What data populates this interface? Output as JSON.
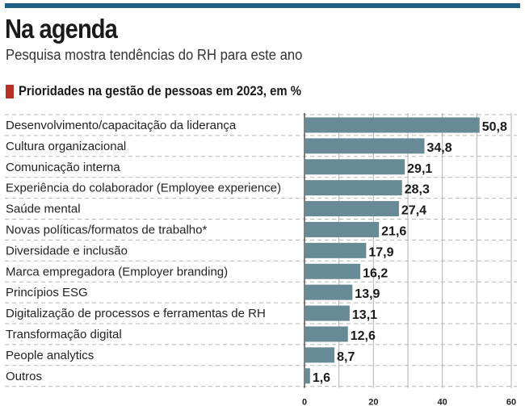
{
  "header": {
    "title": "Na agenda",
    "subtitle": "Pesquisa mostra tendências do RH para este ano"
  },
  "colors": {
    "top_bar": "#1f5f86",
    "section_marker": "#b82f24",
    "bar": "#688a96"
  },
  "chart_data": {
    "type": "bar",
    "orientation": "horizontal",
    "title": "Prioridades na gestão de pessoas em 2023, em %",
    "xlabel": "",
    "ylabel": "",
    "categories": [
      "Desenvolvimento/capacitação da liderança",
      "Cultura organizacional",
      "Comunicação interna",
      "Experiência do colaborador (Employee experience)",
      "Saúde mental",
      "Novas políticas/formatos de trabalho*",
      "Diversidade e inclusão",
      "Marca empregadora (Employer branding)",
      "Princípios ESG",
      "Digitalização de processos e ferramentas de RH",
      "Transformação digital",
      "People analytics",
      "Outros"
    ],
    "values": [
      50.8,
      34.8,
      29.1,
      28.3,
      27.4,
      21.6,
      17.9,
      16.2,
      13.9,
      13.1,
      12.6,
      8.7,
      1.6
    ],
    "value_labels": [
      "50,8",
      "34,8",
      "29,1",
      "28,3",
      "27,4",
      "21,6",
      "17,9",
      "16,2",
      "13,9",
      "13,1",
      "12,6",
      "8,7",
      "1,6"
    ],
    "xlim": [
      0,
      60
    ],
    "x_ticks": [
      0,
      20,
      40,
      60
    ],
    "x_tick_labels": [
      "0",
      "20",
      "40",
      "60"
    ],
    "gridlines": [
      0,
      10,
      20,
      30,
      40,
      50,
      60
    ],
    "grid": true,
    "legend": "none"
  }
}
